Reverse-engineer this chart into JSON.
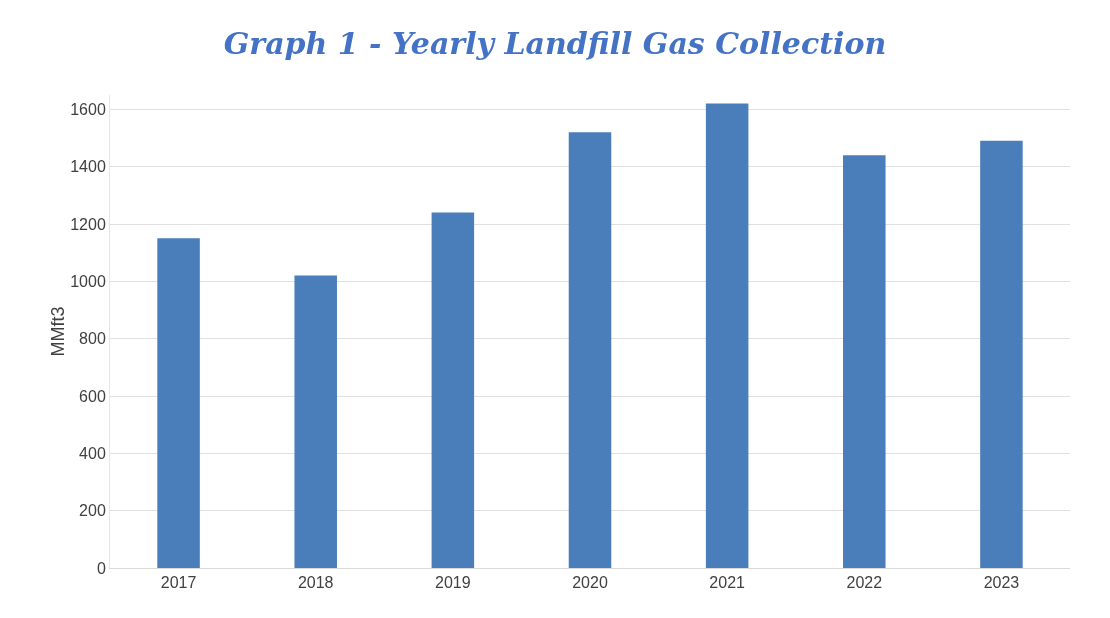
{
  "chart_data": {
    "type": "bar",
    "title": "Graph 1 - Yearly Landfill Gas Collection",
    "ylabel": "MMft3",
    "categories": [
      "2017",
      "2018",
      "2019",
      "2020",
      "2021",
      "2022",
      "2023"
    ],
    "values": [
      1150,
      1020,
      1240,
      1520,
      1620,
      1440,
      1490
    ],
    "color": "#4a7ebb",
    "ylim": [
      0,
      1650
    ],
    "yticks": [
      0,
      200,
      400,
      600,
      800,
      1000,
      1200,
      1400,
      1600
    ],
    "grid": "y"
  }
}
